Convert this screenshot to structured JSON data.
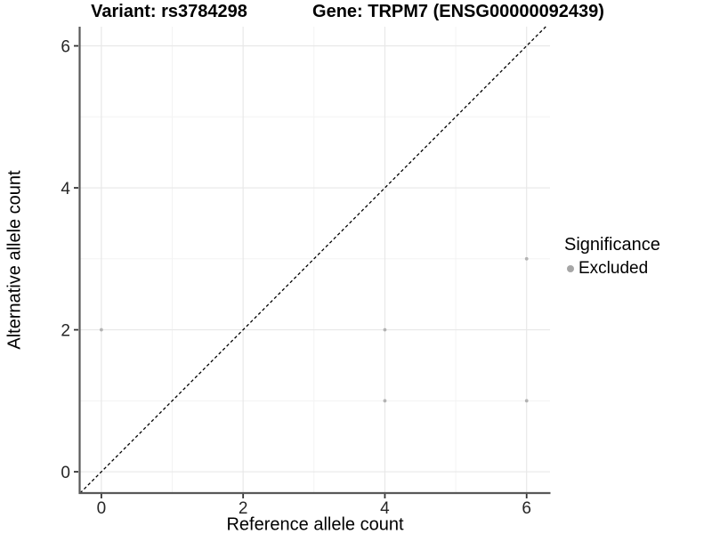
{
  "figure": {
    "background": "#ffffff"
  },
  "chart_data": {
    "type": "scatter",
    "titles": {
      "left": "Variant: rs3784298",
      "right": "Gene: TRPM7 (ENSG00000092439)"
    },
    "xlabel": "Reference allele count",
    "ylabel": "Alternative allele count",
    "xlim": [
      -0.3,
      6.33
    ],
    "ylim": [
      -0.3,
      6.27
    ],
    "xticks": [
      0,
      2,
      4,
      6
    ],
    "yticks": [
      0,
      2,
      4,
      6
    ],
    "minor_xticks": [
      1,
      3,
      5
    ],
    "minor_yticks": [
      1,
      3,
      5
    ],
    "grid": true,
    "points": [
      {
        "x": 0,
        "y": 2,
        "significance": "Excluded"
      },
      {
        "x": 4,
        "y": 1,
        "significance": "Excluded"
      },
      {
        "x": 4,
        "y": 2,
        "significance": "Excluded"
      },
      {
        "x": 6,
        "y": 1,
        "significance": "Excluded"
      },
      {
        "x": 6,
        "y": 3,
        "significance": "Excluded"
      }
    ],
    "identity_line": {
      "style": "dashed",
      "slope": 1,
      "intercept": 0,
      "color": "#000000"
    },
    "legend": {
      "title": "Significance",
      "position": "right",
      "items": [
        {
          "label": "Excluded",
          "color": "#a6a6a6"
        }
      ]
    },
    "colors": {
      "point": "#b3b3b3",
      "axis_line": "#595959",
      "tick": "#333333",
      "tick_label": "#262626",
      "grid_major": "#e8e8e8",
      "grid_minor": "#f3f3f3"
    }
  }
}
